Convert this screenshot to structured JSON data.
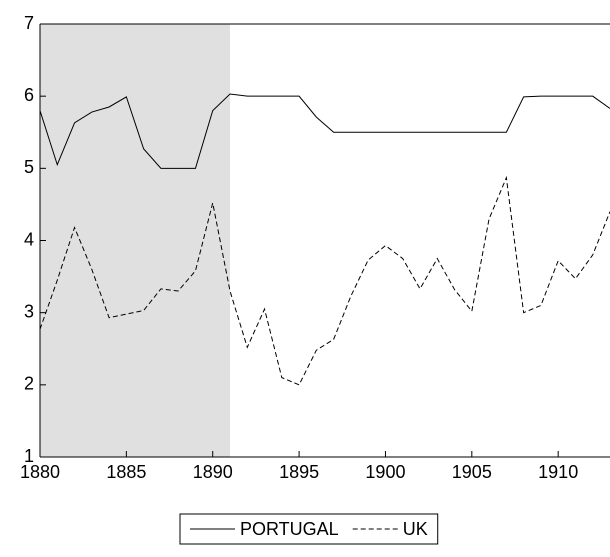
{
  "chart_data": {
    "type": "line",
    "x": [
      1880,
      1881,
      1882,
      1883,
      1884,
      1885,
      1886,
      1887,
      1888,
      1889,
      1890,
      1891,
      1892,
      1893,
      1894,
      1895,
      1896,
      1897,
      1898,
      1899,
      1900,
      1901,
      1902,
      1903,
      1904,
      1905,
      1906,
      1907,
      1908,
      1909,
      1910,
      1911,
      1912,
      1913
    ],
    "series": [
      {
        "name": "PORTUGAL",
        "color": "#000000",
        "style": "solid",
        "values": [
          5.8,
          5.05,
          5.63,
          5.78,
          5.85,
          5.99,
          5.27,
          5.0,
          5.0,
          5.0,
          5.8,
          6.03,
          6.0,
          6.0,
          6.0,
          6.0,
          5.71,
          5.5,
          5.5,
          5.5,
          5.5,
          5.5,
          5.5,
          5.5,
          5.5,
          5.5,
          5.5,
          5.5,
          5.99,
          6.0,
          6.0,
          6.0,
          6.0,
          5.83
        ]
      },
      {
        "name": "UK",
        "color": "#000000",
        "style": "dashed",
        "values": [
          2.77,
          3.45,
          4.18,
          3.6,
          2.93,
          2.98,
          3.03,
          3.33,
          3.3,
          3.58,
          4.52,
          3.3,
          2.52,
          3.05,
          2.1,
          2.0,
          2.48,
          2.63,
          3.23,
          3.73,
          3.93,
          3.75,
          3.33,
          3.75,
          3.32,
          3.02,
          4.3,
          4.87,
          3.0,
          3.1,
          3.72,
          3.47,
          3.8,
          4.4
        ]
      }
    ],
    "shade": [
      1880,
      1891
    ],
    "shade_color": "#e0e0e0",
    "xlim": [
      1880,
      1913
    ],
    "xticks": [
      1880,
      1885,
      1890,
      1895,
      1900,
      1905,
      1910
    ],
    "ylim": [
      1,
      7
    ],
    "yticks": [
      1,
      2,
      3,
      4,
      5,
      6,
      7
    ],
    "legend": "bottom"
  }
}
